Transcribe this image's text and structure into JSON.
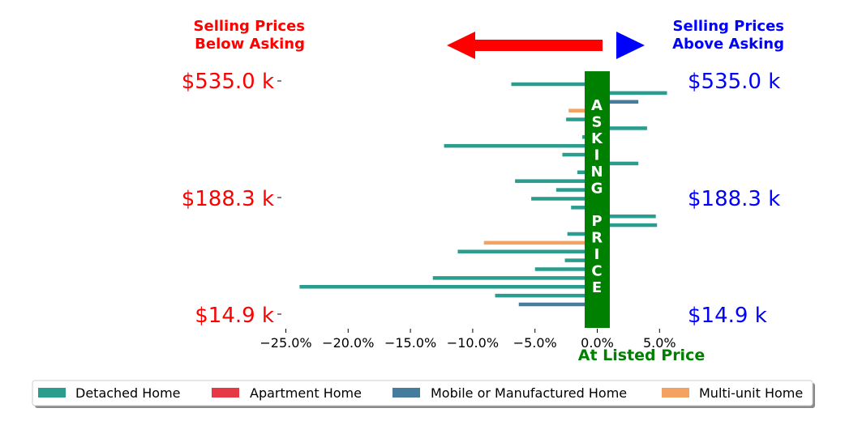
{
  "header": {
    "left_label": [
      "Selling Prices",
      "Below Asking"
    ],
    "right_label": [
      "Selling Prices",
      "Above Asking"
    ],
    "left_color": "#ff0000",
    "right_color": "#0000ff"
  },
  "center_bar": {
    "label": "ASKING PRICE",
    "color": "#008000"
  },
  "xaxis_caption": {
    "text": "At Listed Price",
    "color": "#008000"
  },
  "y_tick_labels": {
    "left": [
      "$535.0 k",
      "$188.3 k",
      "$14.9 k"
    ],
    "right": [
      "$535.0 k",
      "$188.3 k",
      "$14.9 k"
    ]
  },
  "legend": {
    "items": [
      {
        "label": "Detached Home",
        "color": "#2a9d8f"
      },
      {
        "label": "Apartment Home",
        "color": "#e63946"
      },
      {
        "label": "Mobile or Manufactured Home",
        "color": "#457b9d"
      },
      {
        "label": "Multi-unit Home",
        "color": "#f4a261"
      }
    ]
  },
  "chart_data": {
    "type": "bar",
    "orientation": "horizontal",
    "xlabel": "",
    "ylabel": "",
    "xlim": [
      -25.0,
      6.0
    ],
    "x_ticks": [
      "−25.0%",
      "−20.0%",
      "−15.0%",
      "−10.0%",
      "−5.0%",
      "0.0%",
      "5.0%"
    ],
    "x_tick_values": [
      -25,
      -20,
      -15,
      -10,
      -5,
      0,
      5
    ],
    "y_ticks": [
      "$535.0 k",
      "$188.3 k",
      "$14.9 k"
    ],
    "grid": false,
    "legend_position": "bottom",
    "bars": [
      {
        "category": "Detached Home",
        "value": -6.9
      },
      {
        "category": "Detached Home",
        "value": 5.6
      },
      {
        "category": "Mobile or Manufactured Home",
        "value": 3.3
      },
      {
        "category": "Multi-unit Home",
        "value": -2.3
      },
      {
        "category": "Detached Home",
        "value": -2.5
      },
      {
        "category": "Detached Home",
        "value": 4.0
      },
      {
        "category": "Detached Home",
        "value": -1.2
      },
      {
        "category": "Detached Home",
        "value": -12.3
      },
      {
        "category": "Detached Home",
        "value": -2.8
      },
      {
        "category": "Detached Home",
        "value": 3.3
      },
      {
        "category": "Detached Home",
        "value": -1.6
      },
      {
        "category": "Detached Home",
        "value": -6.6
      },
      {
        "category": "Detached Home",
        "value": -3.3
      },
      {
        "category": "Detached Home",
        "value": -5.3
      },
      {
        "category": "Detached Home",
        "value": -2.1
      },
      {
        "category": "Detached Home",
        "value": 4.7
      },
      {
        "category": "Detached Home",
        "value": 4.8
      },
      {
        "category": "Detached Home",
        "value": -2.4
      },
      {
        "category": "Multi-unit Home",
        "value": -9.1
      },
      {
        "category": "Detached Home",
        "value": -11.2
      },
      {
        "category": "Detached Home",
        "value": -2.6
      },
      {
        "category": "Detached Home",
        "value": -5.0
      },
      {
        "category": "Detached Home",
        "value": -13.2
      },
      {
        "category": "Detached Home",
        "value": -23.9
      },
      {
        "category": "Detached Home",
        "value": -8.2
      },
      {
        "category": "Mobile or Manufactured Home",
        "value": -6.3
      }
    ]
  }
}
